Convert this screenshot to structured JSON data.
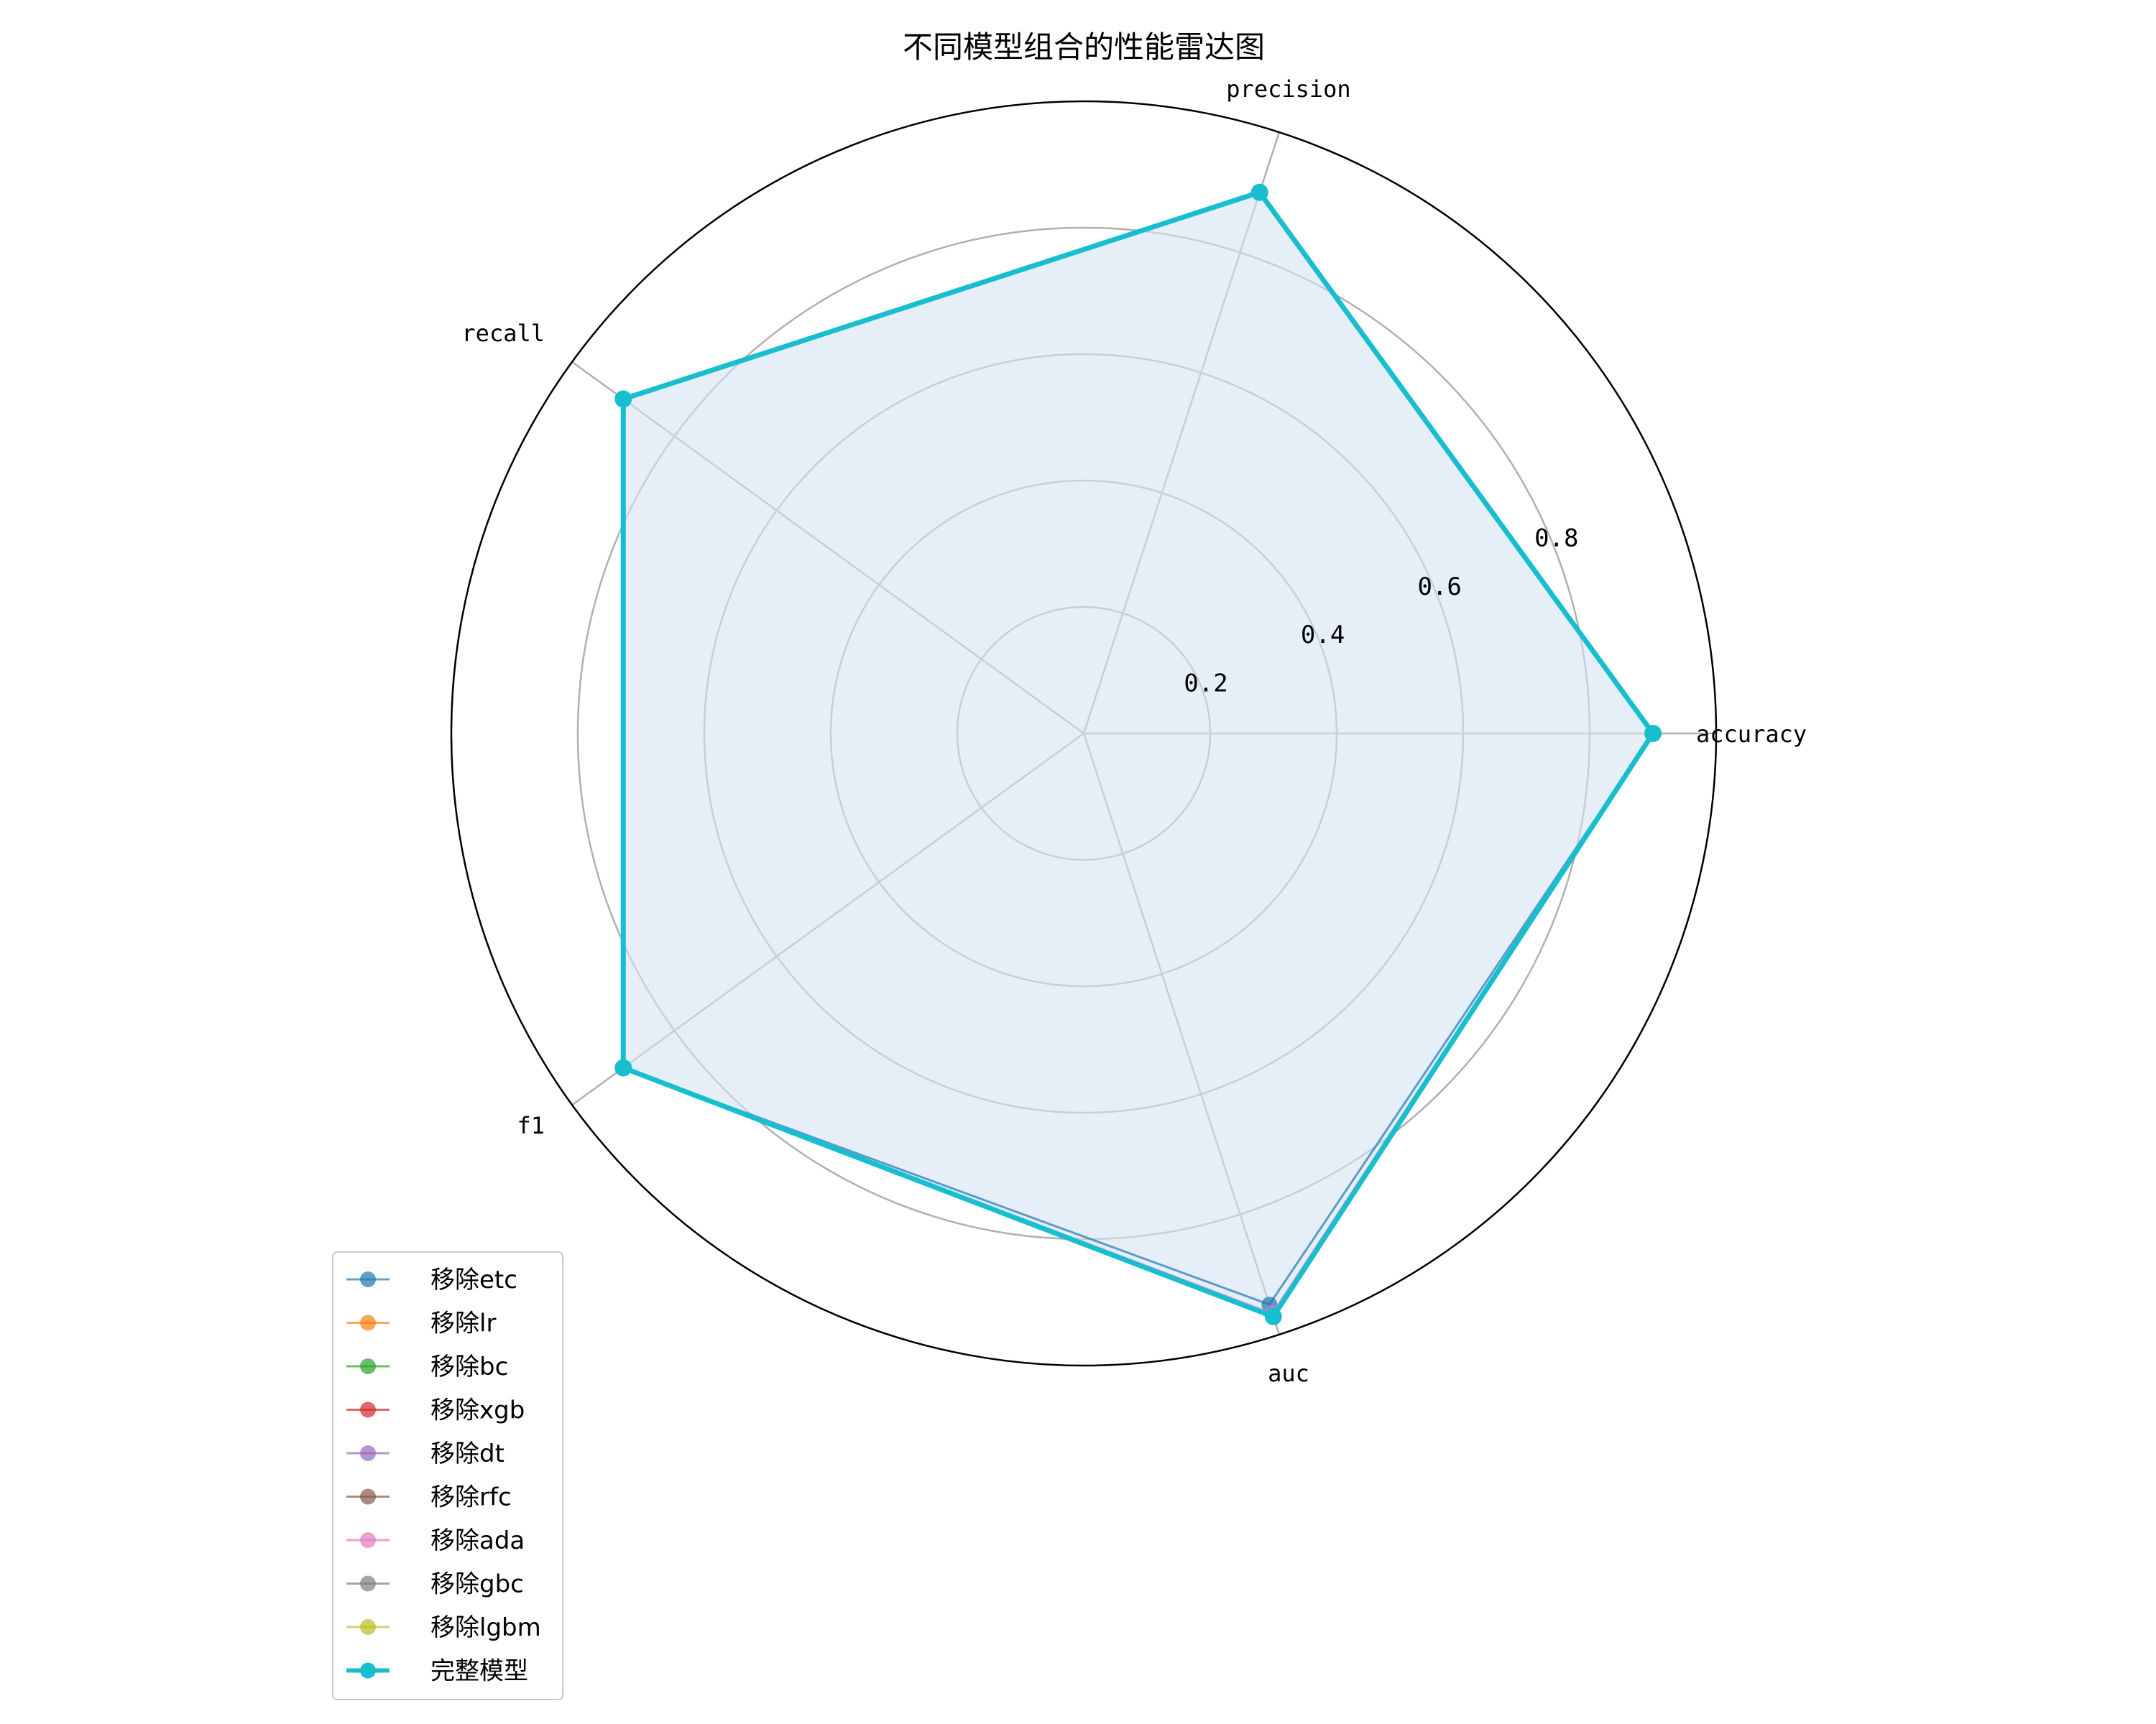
{
  "chart_data": {
    "type": "radar",
    "title": "不同模型组合的性能雷达图",
    "axes": [
      "accuracy",
      "precision",
      "recall",
      "f1",
      "auc"
    ],
    "rlim": [
      0,
      1.0
    ],
    "rticks": [
      0.2,
      0.4,
      0.6,
      0.8
    ],
    "rtick_labels": [
      "0.2",
      "0.4",
      "0.6",
      "0.8"
    ],
    "grid": true,
    "legend_position": "lower-left",
    "fill_color": "#d6e5f2",
    "series": [
      {
        "name": "移除etc",
        "color": "#1f77b4",
        "values": [
          0.9,
          0.9,
          0.9,
          0.9,
          0.95
        ]
      },
      {
        "name": "移除lr",
        "color": "#ff7f0e",
        "values": [
          0.9,
          0.9,
          0.9,
          0.9,
          0.97
        ]
      },
      {
        "name": "移除bc",
        "color": "#2ca02c",
        "values": [
          0.9,
          0.9,
          0.9,
          0.9,
          0.97
        ]
      },
      {
        "name": "移除xgb",
        "color": "#d62728",
        "values": [
          0.9,
          0.9,
          0.9,
          0.9,
          0.97
        ]
      },
      {
        "name": "移除dt",
        "color": "#9467bd",
        "values": [
          0.9,
          0.9,
          0.9,
          0.9,
          0.97
        ]
      },
      {
        "name": "移除rfc",
        "color": "#8c564b",
        "values": [
          0.9,
          0.9,
          0.9,
          0.9,
          0.97
        ]
      },
      {
        "name": "移除ada",
        "color": "#e377c2",
        "values": [
          0.9,
          0.9,
          0.9,
          0.9,
          0.965
        ]
      },
      {
        "name": "移除gbc",
        "color": "#7f7f7f",
        "values": [
          0.9,
          0.9,
          0.9,
          0.9,
          0.97
        ]
      },
      {
        "name": "移除lgbm",
        "color": "#bcbd22",
        "values": [
          0.9,
          0.9,
          0.9,
          0.9,
          0.97
        ]
      },
      {
        "name": "完整模型",
        "color": "#17becf",
        "values": [
          0.9,
          0.9,
          0.9,
          0.9,
          0.97
        ],
        "emphasis": true
      }
    ]
  }
}
